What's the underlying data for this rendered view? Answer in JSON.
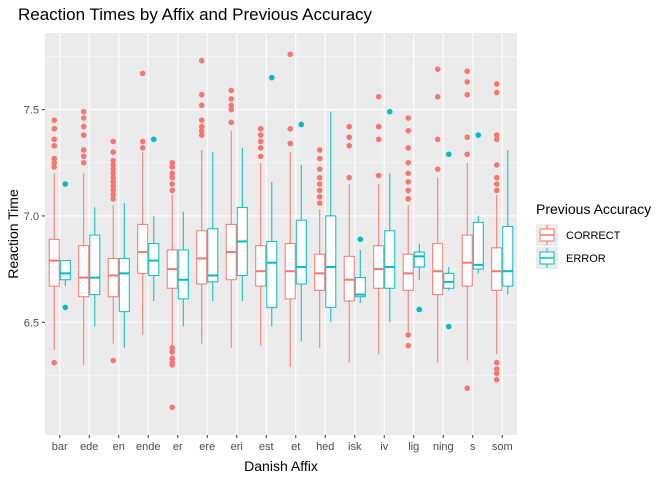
{
  "colors": {
    "panel": "#ebebeb",
    "grid_major": "#ffffff",
    "tick": "#333333",
    "series": [
      "#f8766d",
      "#00bfc4"
    ]
  },
  "chart_data": {
    "type": "boxplot",
    "title": "Reaction Times by Affix and Previous Accuracy",
    "xlabel": "Danish Affix",
    "ylabel": "Reaction Time",
    "categories": [
      "bar",
      "ede",
      "en",
      "ende",
      "er",
      "ere",
      "eri",
      "est",
      "et",
      "hed",
      "isk",
      "iv",
      "lig",
      "ning",
      "s",
      "som"
    ],
    "ylim": [
      5.97,
      7.86
    ],
    "yticks": [
      6.5,
      7.0,
      7.5
    ],
    "ytick_labels": [
      "6.5",
      "7.0",
      "7.5"
    ],
    "grid": true,
    "legend": {
      "title": "Previous Accuracy",
      "position": "right"
    },
    "series": [
      {
        "name": "CORRECT",
        "boxes": [
          {
            "category": "bar",
            "whisker_low": 6.37,
            "q1": 6.67,
            "median": 6.79,
            "q3": 6.89,
            "whisker_high": 7.2,
            "outliers": [
              6.31,
              7.23,
              7.25,
              7.27,
              7.33,
              7.36,
              7.41,
              7.45
            ]
          },
          {
            "category": "ede",
            "whisker_low": 6.3,
            "q1": 6.62,
            "median": 6.71,
            "q3": 6.86,
            "whisker_high": 7.2,
            "outliers": [
              7.25,
              7.28,
              7.31,
              7.38,
              7.42,
              7.46,
              7.49
            ]
          },
          {
            "category": "en",
            "whisker_low": 6.4,
            "q1": 6.62,
            "median": 6.72,
            "q3": 6.8,
            "whisker_high": 7.05,
            "outliers": [
              6.32,
              7.08,
              7.1,
              7.12,
              7.14,
              7.16,
              7.18,
              7.2,
              7.22,
              7.24,
              7.26,
              7.3,
              7.35
            ]
          },
          {
            "category": "ende",
            "whisker_low": 6.44,
            "q1": 6.73,
            "median": 6.83,
            "q3": 6.96,
            "whisker_high": 7.3,
            "outliers": [
              7.32,
              7.35,
              7.67
            ]
          },
          {
            "category": "er",
            "whisker_low": 6.38,
            "q1": 6.66,
            "median": 6.75,
            "q3": 6.84,
            "whisker_high": 7.1,
            "outliers": [
              6.1,
              6.3,
              6.31,
              6.33,
              6.36,
              6.38,
              7.12,
              7.15,
              7.18,
              7.2,
              7.23,
              7.25
            ]
          },
          {
            "category": "ere",
            "whisker_low": 6.4,
            "q1": 6.68,
            "median": 6.8,
            "q3": 6.93,
            "whisker_high": 7.31,
            "outliers": [
              7.38,
              7.4,
              7.42,
              7.45,
              7.52,
              7.57,
              7.73
            ]
          },
          {
            "category": "eri",
            "whisker_low": 6.38,
            "q1": 6.7,
            "median": 6.83,
            "q3": 6.96,
            "whisker_high": 7.4,
            "outliers": [
              7.44,
              7.5,
              7.52,
              7.55,
              7.59
            ]
          },
          {
            "category": "est",
            "whisker_low": 6.39,
            "q1": 6.67,
            "median": 6.74,
            "q3": 6.86,
            "whisker_high": 7.25,
            "outliers": [
              7.28,
              7.32,
              7.35,
              7.38,
              7.41
            ]
          },
          {
            "category": "et",
            "whisker_low": 6.29,
            "q1": 6.61,
            "median": 6.74,
            "q3": 6.87,
            "whisker_high": 7.3,
            "outliers": [
              7.34,
              7.41,
              7.76
            ]
          },
          {
            "category": "hed",
            "whisker_low": 6.38,
            "q1": 6.65,
            "median": 6.73,
            "q3": 6.82,
            "whisker_high": 7.03,
            "outliers": [
              7.06,
              7.09,
              7.12,
              7.15,
              7.18,
              7.22,
              7.27,
              7.31
            ]
          },
          {
            "category": "isk",
            "whisker_low": 6.31,
            "q1": 6.6,
            "median": 6.7,
            "q3": 6.81,
            "whisker_high": 7.15,
            "outliers": [
              7.18,
              7.33,
              7.37,
              7.42
            ]
          },
          {
            "category": "iv",
            "whisker_low": 6.35,
            "q1": 6.66,
            "median": 6.75,
            "q3": 6.86,
            "whisker_high": 7.15,
            "outliers": [
              7.19,
              7.36,
              7.42,
              7.56
            ]
          },
          {
            "category": "lig",
            "whisker_low": 6.45,
            "q1": 6.65,
            "median": 6.73,
            "q3": 6.82,
            "whisker_high": 7.05,
            "outliers": [
              6.39,
              6.44,
              7.08,
              7.12,
              7.16,
              7.2,
              7.25,
              7.32,
              7.4,
              7.46
            ]
          },
          {
            "category": "ning",
            "whisker_low": 6.31,
            "q1": 6.63,
            "median": 6.74,
            "q3": 6.87,
            "whisker_high": 7.18,
            "outliers": [
              7.22,
              7.36,
              7.56,
              7.69
            ]
          },
          {
            "category": "s",
            "whisker_low": 6.32,
            "q1": 6.67,
            "median": 6.78,
            "q3": 6.91,
            "whisker_high": 7.25,
            "outliers": [
              6.19,
              7.29,
              7.37,
              7.57,
              7.63,
              7.68
            ]
          },
          {
            "category": "som",
            "whisker_low": 6.35,
            "q1": 6.65,
            "median": 6.74,
            "q3": 6.85,
            "whisker_high": 7.1,
            "outliers": [
              6.23,
              6.26,
              6.28,
              6.31,
              7.12,
              7.15,
              7.18,
              7.24,
              7.36,
              7.38,
              7.58,
              7.62
            ]
          }
        ]
      },
      {
        "name": "ERROR",
        "boxes": [
          {
            "category": "bar",
            "whisker_low": 6.67,
            "q1": 6.7,
            "median": 6.73,
            "q3": 6.79,
            "whisker_high": 6.79,
            "outliers": [
              6.57,
              7.15
            ]
          },
          {
            "category": "ede",
            "whisker_low": 6.48,
            "q1": 6.63,
            "median": 6.71,
            "q3": 6.91,
            "whisker_high": 7.04,
            "outliers": []
          },
          {
            "category": "en",
            "whisker_low": 6.38,
            "q1": 6.55,
            "median": 6.73,
            "q3": 6.8,
            "whisker_high": 7.06,
            "outliers": []
          },
          {
            "category": "ende",
            "whisker_low": 6.6,
            "q1": 6.72,
            "median": 6.79,
            "q3": 6.87,
            "whisker_high": 7.0,
            "outliers": [
              7.36
            ]
          },
          {
            "category": "er",
            "whisker_low": 6.48,
            "q1": 6.61,
            "median": 6.7,
            "q3": 6.84,
            "whisker_high": 7.02,
            "outliers": []
          },
          {
            "category": "ere",
            "whisker_low": 6.6,
            "q1": 6.69,
            "median": 6.72,
            "q3": 6.94,
            "whisker_high": 7.3,
            "outliers": []
          },
          {
            "category": "eri",
            "whisker_low": 6.6,
            "q1": 6.72,
            "median": 6.88,
            "q3": 7.04,
            "whisker_high": 7.32,
            "outliers": []
          },
          {
            "category": "est",
            "whisker_low": 6.48,
            "q1": 6.57,
            "median": 6.78,
            "q3": 6.88,
            "whisker_high": 7.16,
            "outliers": [
              7.65
            ]
          },
          {
            "category": "et",
            "whisker_low": 6.41,
            "q1": 6.68,
            "median": 6.76,
            "q3": 6.98,
            "whisker_high": 7.24,
            "outliers": [
              7.43
            ]
          },
          {
            "category": "hed",
            "whisker_low": 6.5,
            "q1": 6.57,
            "median": 6.76,
            "q3": 7.0,
            "whisker_high": 7.49,
            "outliers": []
          },
          {
            "category": "isk",
            "whisker_low": 6.59,
            "q1": 6.62,
            "median": 6.63,
            "q3": 6.71,
            "whisker_high": 6.84,
            "outliers": [
              6.89
            ]
          },
          {
            "category": "iv",
            "whisker_low": 6.5,
            "q1": 6.66,
            "median": 6.76,
            "q3": 6.93,
            "whisker_high": 7.2,
            "outliers": [
              7.49
            ]
          },
          {
            "category": "lig",
            "whisker_low": 6.7,
            "q1": 6.76,
            "median": 6.81,
            "q3": 6.83,
            "whisker_high": 6.87,
            "outliers": [
              6.56
            ]
          },
          {
            "category": "ning",
            "whisker_low": 6.65,
            "q1": 6.66,
            "median": 6.69,
            "q3": 6.73,
            "whisker_high": 6.76,
            "outliers": [
              6.48,
              7.29
            ]
          },
          {
            "category": "s",
            "whisker_low": 6.73,
            "q1": 6.75,
            "median": 6.77,
            "q3": 6.97,
            "whisker_high": 7.0,
            "outliers": [
              7.38
            ]
          },
          {
            "category": "som",
            "whisker_low": 6.63,
            "q1": 6.67,
            "median": 6.74,
            "q3": 6.95,
            "whisker_high": 7.31,
            "outliers": []
          }
        ]
      }
    ]
  }
}
